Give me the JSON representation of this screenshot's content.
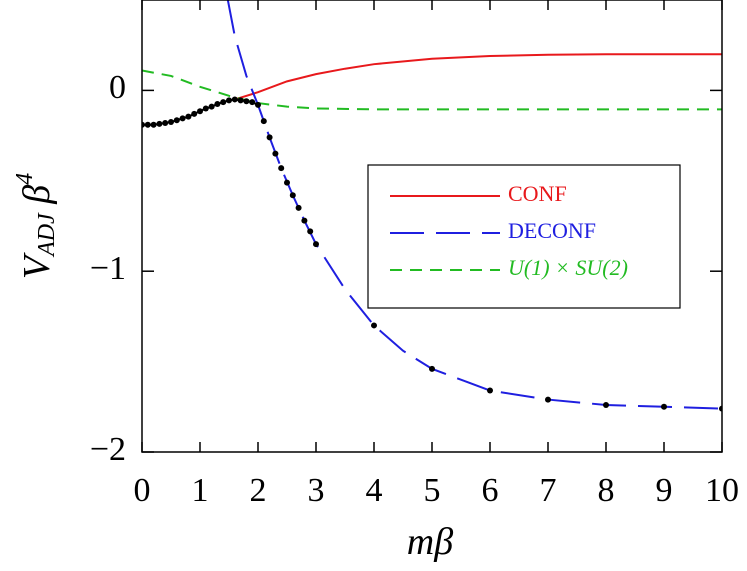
{
  "chart_data": {
    "type": "line",
    "xlabel": {
      "main": "m",
      "rest": "β"
    },
    "ylabel": {
      "main": "V",
      "sub": "ADJ",
      "rest": " β",
      "sup": "4"
    },
    "xlim": [
      0,
      10
    ],
    "ylim": [
      -2,
      0.5
    ],
    "xticks": [
      0,
      1,
      2,
      3,
      4,
      5,
      6,
      7,
      8,
      9,
      10
    ],
    "yticks": [
      {
        "value": 0,
        "label": "0"
      },
      {
        "value": -1,
        "label": "−1"
      },
      {
        "value": -2,
        "label": "−2"
      }
    ],
    "series": [
      {
        "name": "CONF",
        "color": "#e8191c",
        "dash": "solid",
        "x": [
          1.6,
          2,
          2.5,
          3,
          3.5,
          4,
          5,
          6,
          7,
          8,
          9,
          10
        ],
        "values": [
          -0.05,
          -0.01,
          0.05,
          0.09,
          0.12,
          0.145,
          0.175,
          0.19,
          0.197,
          0.2,
          0.2,
          0.2
        ]
      },
      {
        "name": "DECONF",
        "color": "#1f1fe0",
        "dash": "long",
        "x": [
          1.48,
          1.6,
          1.8,
          2.0,
          2.2,
          2.4,
          2.6,
          2.8,
          3.0,
          3.5,
          4,
          4.5,
          5,
          6,
          7,
          8,
          9,
          10
        ],
        "values": [
          0.5,
          0.3,
          0.08,
          -0.08,
          -0.26,
          -0.43,
          -0.58,
          -0.72,
          -0.85,
          -1.1,
          -1.3,
          -1.44,
          -1.54,
          -1.66,
          -1.71,
          -1.74,
          -1.75,
          -1.76
        ]
      },
      {
        "name": "U(1) × SU(2)",
        "color": "#22bb22",
        "dash": "short",
        "x": [
          0,
          0.5,
          1,
          1.5,
          2,
          2.5,
          3,
          4,
          6,
          8,
          10
        ],
        "values": [
          0.11,
          0.08,
          0.02,
          -0.03,
          -0.07,
          -0.09,
          -0.1,
          -0.105,
          -0.105,
          -0.105,
          -0.105
        ]
      }
    ],
    "points": {
      "color": "#000000",
      "x": [
        0,
        0.1,
        0.2,
        0.3,
        0.4,
        0.5,
        0.6,
        0.7,
        0.8,
        0.9,
        1.0,
        1.1,
        1.2,
        1.3,
        1.4,
        1.5,
        1.6,
        1.7,
        1.8,
        1.9,
        2.0,
        2.1,
        2.2,
        2.3,
        2.4,
        2.5,
        2.6,
        2.7,
        2.8,
        2.9,
        3.0,
        4,
        5,
        6,
        7,
        8,
        9,
        10
      ],
      "values": [
        -0.19,
        -0.19,
        -0.19,
        -0.185,
        -0.18,
        -0.175,
        -0.165,
        -0.155,
        -0.145,
        -0.13,
        -0.115,
        -0.1,
        -0.09,
        -0.075,
        -0.065,
        -0.055,
        -0.05,
        -0.055,
        -0.06,
        -0.065,
        -0.08,
        -0.17,
        -0.26,
        -0.35,
        -0.43,
        -0.51,
        -0.58,
        -0.65,
        -0.72,
        -0.78,
        -0.85,
        -1.3,
        -1.54,
        -1.66,
        -1.71,
        -1.74,
        -1.75,
        -1.76
      ]
    }
  }
}
